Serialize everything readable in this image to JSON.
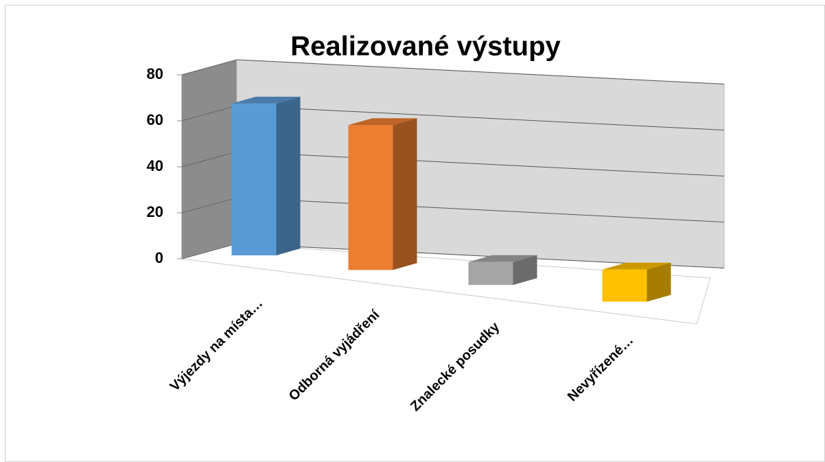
{
  "chart_data": {
    "type": "bar3d",
    "title": "Realizované výstupy",
    "categories": [
      "Výjezdy na místa…",
      "Odborná vyjádření",
      "Znalecké posudky",
      "Nevyřízené…"
    ],
    "values": [
      66,
      63,
      10,
      14
    ],
    "colors": [
      "#5b9bd5",
      "#ed7d31",
      "#a5a5a5",
      "#ffc000"
    ],
    "ylim": [
      0,
      80
    ],
    "yticks": [
      0,
      20,
      40,
      60,
      80
    ],
    "grid": true
  }
}
